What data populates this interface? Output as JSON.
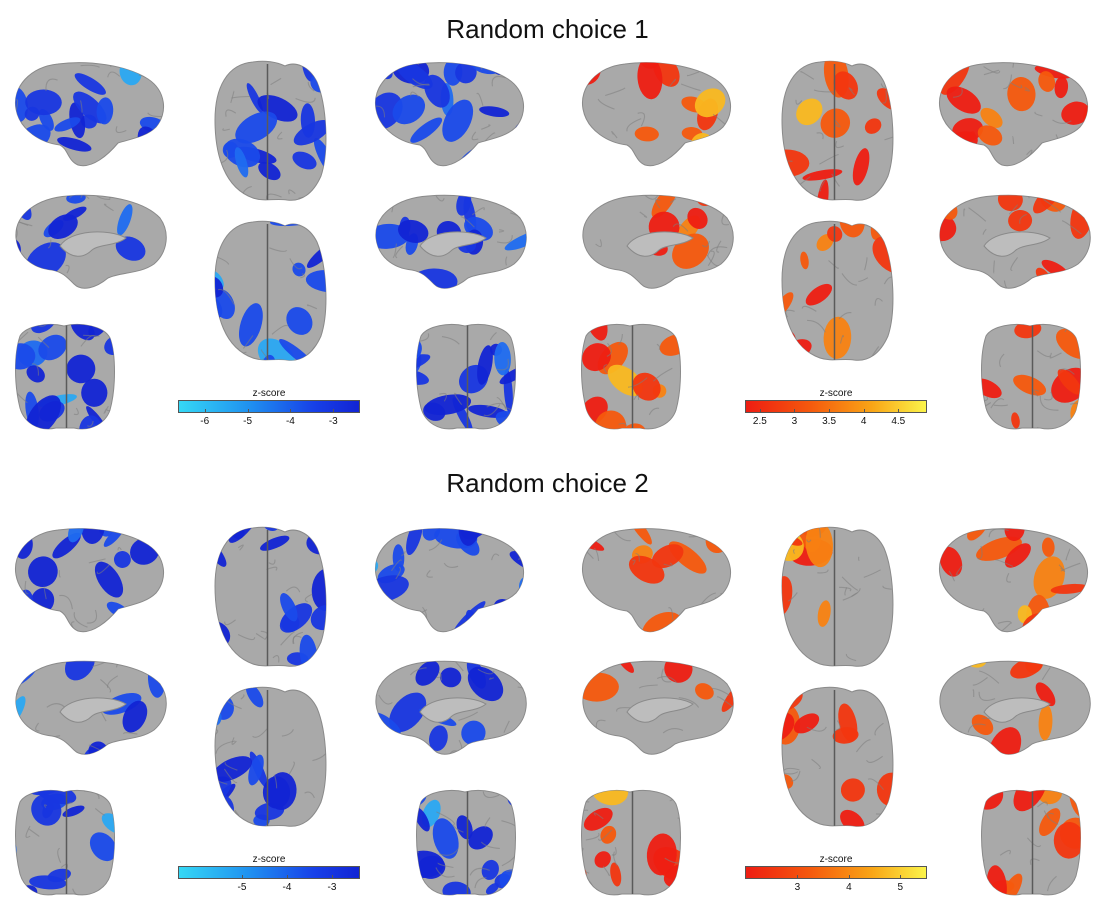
{
  "colors": {
    "cortex": "#a9a9a9",
    "cortex_edge": "#8a8a8a",
    "blue_low": "#1224d4",
    "blue_high": "#35d8f5",
    "warm_low": "#ee1d12",
    "warm_high": "#fbf44a"
  },
  "panels": [
    {
      "title": "Random choice 1",
      "colorbar_negative": {
        "label": "z-score",
        "range": [
          -6.6,
          -2.4
        ],
        "ticks": [
          "-6",
          "-5",
          "-4",
          "-3"
        ],
        "tick_values": [
          -6,
          -5,
          -4,
          -3
        ]
      },
      "colorbar_positive": {
        "label": "z-score",
        "range": [
          2.3,
          4.9
        ],
        "ticks": [
          "2.5",
          "3",
          "3.5",
          "4",
          "4.5"
        ],
        "tick_values": [
          2.5,
          3,
          3.5,
          4,
          4.5
        ]
      }
    },
    {
      "title": "Random choice 2",
      "colorbar_negative": {
        "label": "z-score",
        "range": [
          -6.4,
          -2.4
        ],
        "ticks": [
          "-5",
          "-4",
          "-3"
        ],
        "tick_values": [
          -5,
          -4,
          -3
        ]
      },
      "colorbar_positive": {
        "label": "z-score",
        "range": [
          2.0,
          5.5
        ],
        "ticks": [
          "3",
          "4",
          "5"
        ],
        "tick_values": [
          3,
          4,
          5
        ]
      }
    }
  ]
}
